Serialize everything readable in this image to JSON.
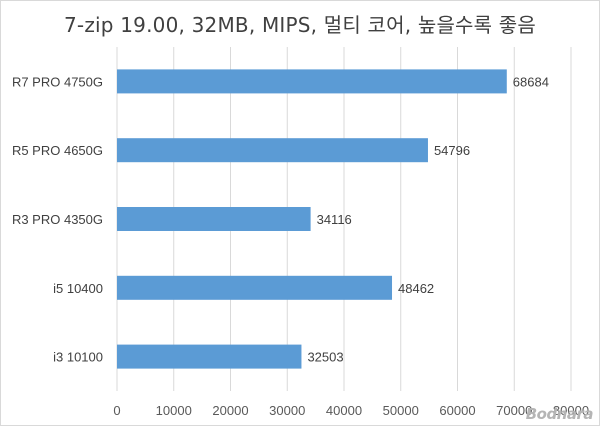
{
  "chart_data": {
    "type": "bar",
    "orientation": "horizontal",
    "title": "7-zip 19.00, 32MB, MIPS, 멀티 코어, 높을수록 좋음",
    "categories": [
      "R7 PRO 4750G",
      "R5 PRO 4650G",
      "R3 PRO 4350G",
      "i5 10400",
      "i3 10100"
    ],
    "values": [
      68684,
      54796,
      34116,
      48462,
      32503
    ],
    "xlim": [
      0,
      80000
    ],
    "xticks": [
      0,
      10000,
      20000,
      30000,
      40000,
      50000,
      60000,
      70000,
      80000
    ],
    "grid": true,
    "legend": "none",
    "bar_color": "#5b9bd5",
    "data_labels": true
  },
  "watermark": "Bodnara"
}
